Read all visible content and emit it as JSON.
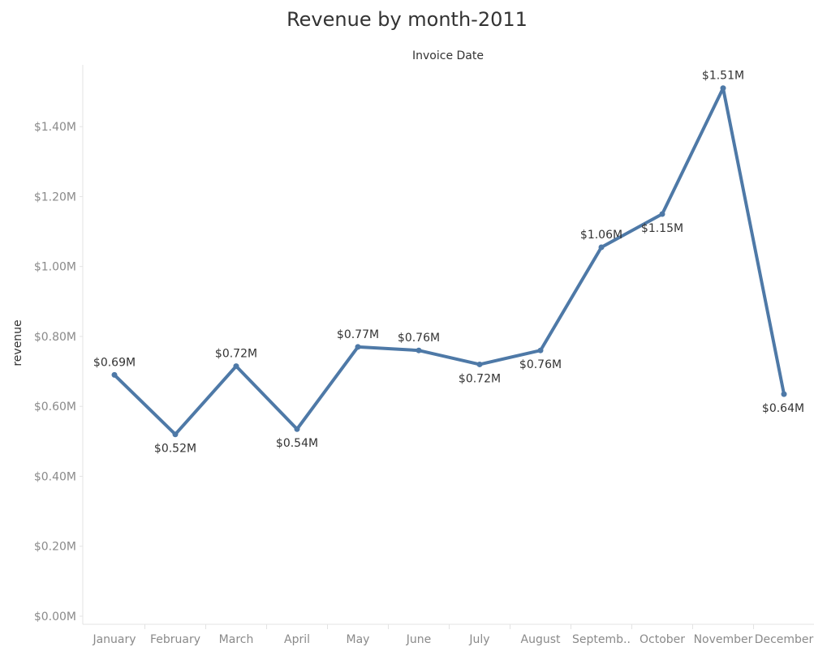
{
  "chart_data": {
    "type": "line",
    "title": "Revenue by month-2011",
    "xlabel": "Invoice Date",
    "ylabel": "revenue",
    "categories": [
      "January",
      "February",
      "March",
      "April",
      "May",
      "June",
      "July",
      "August",
      "Septemb..",
      "October",
      "November",
      "December"
    ],
    "series": [
      {
        "values": [
          0.69,
          0.52,
          0.715,
          0.535,
          0.77,
          0.76,
          0.72,
          0.76,
          1.055,
          1.15,
          1.51,
          0.635
        ],
        "labels": [
          "$0.69M",
          "$0.52M",
          "$0.72M",
          "$0.54M",
          "$0.77M",
          "$0.76M",
          "$0.72M",
          "$0.76M",
          "$1.06M",
          "$1.15M",
          "$1.51M",
          "$0.64M"
        ],
        "label_positions": [
          "above",
          "below",
          "above",
          "below",
          "above",
          "above",
          "below",
          "below",
          "above",
          "below",
          "above",
          "below"
        ]
      }
    ],
    "yticks": [
      0,
      0.2,
      0.4,
      0.6,
      0.8,
      1.0,
      1.2,
      1.4
    ],
    "ytick_labels": [
      "$0.00M",
      "$0.20M",
      "$0.40M",
      "$0.60M",
      "$0.80M",
      "$1.00M",
      "$1.20M",
      "$1.40M"
    ],
    "ylim": [
      0,
      1.565
    ],
    "grid": false,
    "line_color": "#4e79a7"
  }
}
